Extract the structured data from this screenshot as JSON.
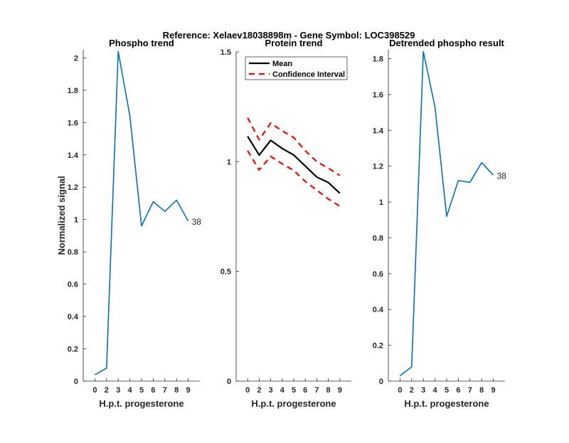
{
  "figure_title": "Reference:  Xelaev18038898m - Gene Symbol:  LOC398529",
  "colors": {
    "phospho": "#0072BD",
    "mean": "#000000",
    "ci": "#FF0000",
    "axis": "#262626"
  },
  "chart_data": [
    {
      "type": "line",
      "title": "Phospho trend",
      "xlabel": "H.p.t. progesterone",
      "ylabel": "Normalized signal",
      "categories": [
        "0",
        "2",
        "3",
        "4",
        "5",
        "6",
        "7",
        "8",
        "9"
      ],
      "ylim": [
        0,
        2.05
      ],
      "yticks": [
        "0",
        "0.2",
        "0.4",
        "0.6",
        "0.8",
        "1",
        "1.2",
        "1.4",
        "1.6",
        "1.8",
        "2"
      ],
      "series": [
        {
          "values": [
            0.04,
            0.08,
            2.04,
            1.64,
            0.96,
            1.11,
            1.05,
            1.12,
            0.99
          ],
          "end_label": "38"
        }
      ],
      "grid": false
    },
    {
      "type": "line",
      "title": "Protein trend",
      "xlabel": "H.p.t. progesterone",
      "ylabel": "",
      "categories": [
        "0",
        "2",
        "3",
        "4",
        "5",
        "6",
        "7",
        "8",
        "9"
      ],
      "ylim": [
        0,
        1.5
      ],
      "yticks": [
        "0",
        "0.5",
        "1",
        "1.5"
      ],
      "legend_position": "top-left",
      "series": [
        {
          "name": "Mean",
          "values": [
            1.115,
            1.03,
            1.097,
            1.06,
            1.03,
            0.98,
            0.93,
            0.905,
            0.856
          ]
        },
        {
          "name": "Confidence Interval",
          "values": [
            1.2,
            1.1,
            1.176,
            1.14,
            1.11,
            1.05,
            1.0,
            0.97,
            0.937
          ]
        },
        {
          "values": [
            1.05,
            0.962,
            1.024,
            0.99,
            0.96,
            0.91,
            0.87,
            0.83,
            0.797
          ]
        }
      ],
      "grid": false
    },
    {
      "type": "line",
      "title": "Detrended phospho result",
      "xlabel": "H.p.t. progesterone",
      "ylabel": "",
      "categories": [
        "0",
        "2",
        "3",
        "4",
        "5",
        "6",
        "7",
        "8",
        "9"
      ],
      "ylim": [
        0,
        1.85
      ],
      "yticks": [
        "0",
        "0.2",
        "0.4",
        "0.6",
        "0.8",
        "1",
        "1.2",
        "1.4",
        "1.6",
        "1.8"
      ],
      "series": [
        {
          "values": [
            0.03,
            0.08,
            1.84,
            1.53,
            0.92,
            1.12,
            1.11,
            1.22,
            1.15
          ],
          "end_label": "38"
        }
      ],
      "grid": false
    }
  ]
}
